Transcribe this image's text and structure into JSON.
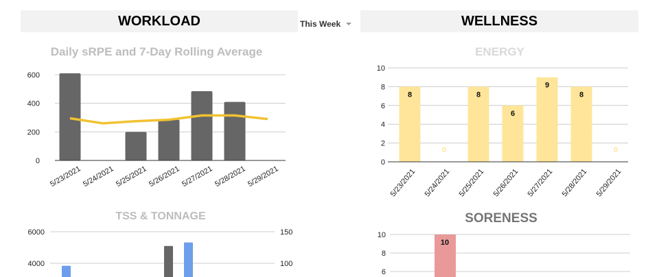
{
  "headers": {
    "workload": "WORKLOAD",
    "wellness": "WELLNESS"
  },
  "week_select": {
    "value": "This Week"
  },
  "colors": {
    "bar_gray": "#666666",
    "line_yellow": "#f1c232",
    "energy": "#ffe599",
    "soreness": "#ea9999",
    "tonnage_blue": "#6d9eeb",
    "grid": "#cccccc"
  },
  "chart_data": [
    {
      "type": "bar",
      "title": "Daily sRPE and 7-Day Rolling Average",
      "categories": [
        "5/23/2021",
        "5/24/2021",
        "5/25/2021",
        "5/26/2021",
        "5/27/2021",
        "5/28/2021",
        "5/29/2021"
      ],
      "series": [
        {
          "name": "Daily sRPE",
          "kind": "bar",
          "values": [
            610,
            0,
            200,
            285,
            485,
            410,
            0
          ]
        },
        {
          "name": "7-Day Rolling Average",
          "kind": "line",
          "values": [
            295,
            260,
            275,
            285,
            315,
            315,
            290
          ]
        }
      ],
      "yticks": [
        "0",
        "200",
        "400",
        "600"
      ],
      "ylim": [
        0,
        600
      ],
      "grid": true
    },
    {
      "type": "bar",
      "title": "ENERGY",
      "categories": [
        "5/23/2021",
        "5/24/2021",
        "5/25/2021",
        "5/26/2021",
        "5/27/2021",
        "5/28/2021",
        "5/29/2021"
      ],
      "values": [
        8,
        0,
        8,
        6,
        9,
        8,
        0
      ],
      "labels": [
        "8",
        "0",
        "8",
        "6",
        "9",
        "8",
        "0"
      ],
      "yticks": [
        "0",
        "2",
        "4",
        "6",
        "8",
        "10"
      ],
      "ylim": [
        0,
        10
      ],
      "grid": true
    },
    {
      "type": "bar",
      "title": "TSS & TONNAGE",
      "yticks_left": [
        "4000",
        "6000"
      ],
      "yticks_right": [
        "100",
        "150"
      ],
      "series": [
        {
          "name": "Tonnage",
          "axis": "left",
          "values_visible": [
            {
              "x": "5/27/2021",
              "y": 5100
            }
          ]
        },
        {
          "name": "TSS",
          "axis": "right",
          "values_visible": [
            {
              "x": "5/23/2021",
              "y": 96
            },
            {
              "x": "5/28/2021",
              "y": 133
            }
          ]
        }
      ]
    },
    {
      "type": "bar",
      "title": "SORENESS",
      "values_visible": [
        {
          "x": "5/24/2021",
          "y": 10
        }
      ],
      "labels": [
        "10"
      ],
      "yticks": [
        "6",
        "8",
        "10"
      ],
      "grid": true
    }
  ]
}
